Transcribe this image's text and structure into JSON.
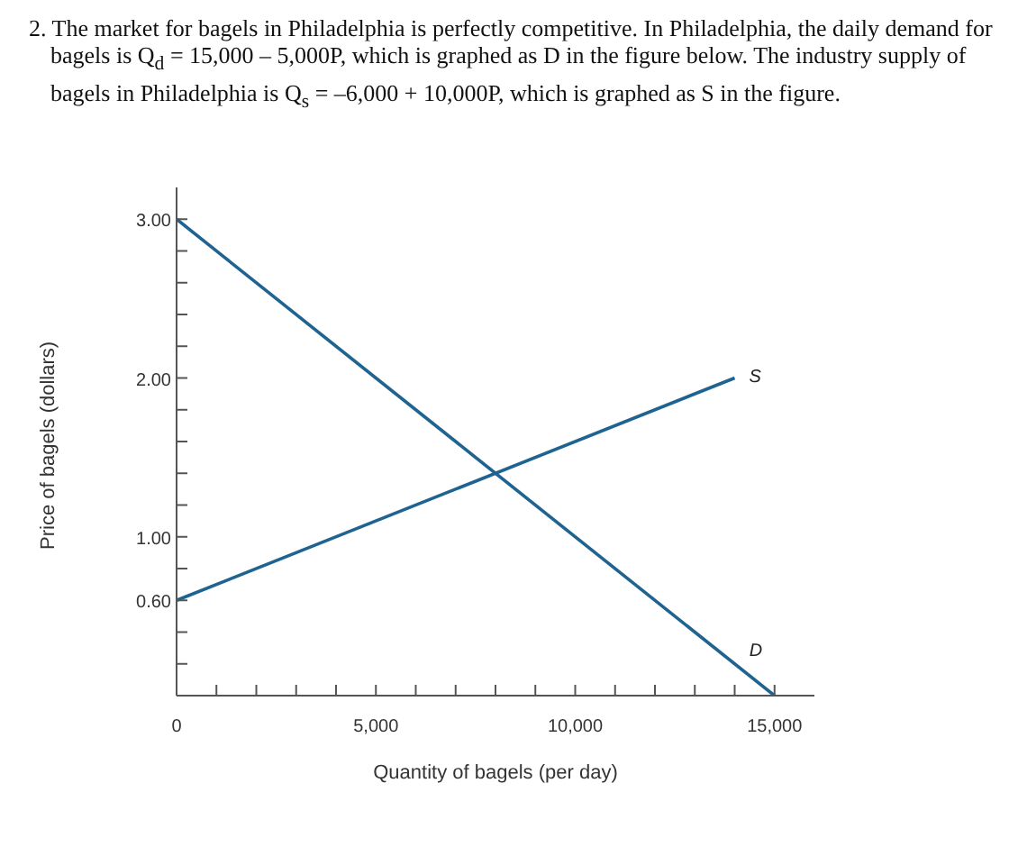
{
  "chart_data": {
    "type": "line",
    "title": "2. The market for bagels in Philadelphia is perfectly competitive. In Philadelphia, the daily demand for bagels is Q$_{d}$ = 15,000 – 5,000P, which is graphed as D in the figure below. The industry supply of bagels in Philadelphia is Q$_{s}$ = –6,000 + 10,000P, which is graphed as S in the figure.",
    "xlabel": "Quantity of bagels (per day)",
    "ylabel": "Price of bagels (dollars)",
    "series": [
      {
        "name": "D",
        "color": "#1f6391",
        "x": [
          0,
          15000
        ],
        "values": [
          3.0,
          0
        ]
      },
      {
        "name": "S",
        "color": "#1f6391",
        "x": [
          0,
          14000
        ],
        "values": [
          0.6,
          2.0
        ]
      }
    ],
    "xlim": [
      0,
      16000
    ],
    "xticks": [
      {
        "value": 0,
        "label": "0"
      },
      {
        "value": 1000,
        "label": null
      },
      {
        "value": 2000,
        "label": null
      },
      {
        "value": 3000,
        "label": null
      },
      {
        "value": 4000,
        "label": null
      },
      {
        "value": 5000,
        "label": "5,000"
      },
      {
        "value": 6000,
        "label": null
      },
      {
        "value": 7000,
        "label": null
      },
      {
        "value": 8000,
        "label": null
      },
      {
        "value": 9000,
        "label": null
      },
      {
        "value": 10000,
        "label": "10,000"
      },
      {
        "value": 11000,
        "label": null
      },
      {
        "value": 12000,
        "label": null
      },
      {
        "value": 13000,
        "label": null
      },
      {
        "value": 14000,
        "label": null
      },
      {
        "value": 15000,
        "label": "15,000"
      }
    ],
    "ylim": [
      0,
      3.2
    ],
    "yticks": [
      {
        "value": 0,
        "label": null
      },
      {
        "value": 0.2,
        "label": null
      },
      {
        "value": 0.4,
        "label": null
      },
      {
        "value": 0.6,
        "label": "0.60"
      },
      {
        "value": 0.8,
        "label": null
      },
      {
        "value": 1.0,
        "label": "1.00"
      },
      {
        "value": 1.2,
        "label": null
      },
      {
        "value": 1.4,
        "label": null
      },
      {
        "value": 1.6,
        "label": null
      },
      {
        "value": 1.8,
        "label": null
      },
      {
        "value": 2.0,
        "label": "2.00"
      },
      {
        "value": 2.2,
        "label": null
      },
      {
        "value": 2.4,
        "label": null
      },
      {
        "value": 2.6,
        "label": null
      },
      {
        "value": 2.8,
        "label": null
      },
      {
        "value": 3.0,
        "label": "3.00"
      }
    ],
    "grid": false,
    "legend": false,
    "marker": "none",
    "line_style": "solid"
  }
}
